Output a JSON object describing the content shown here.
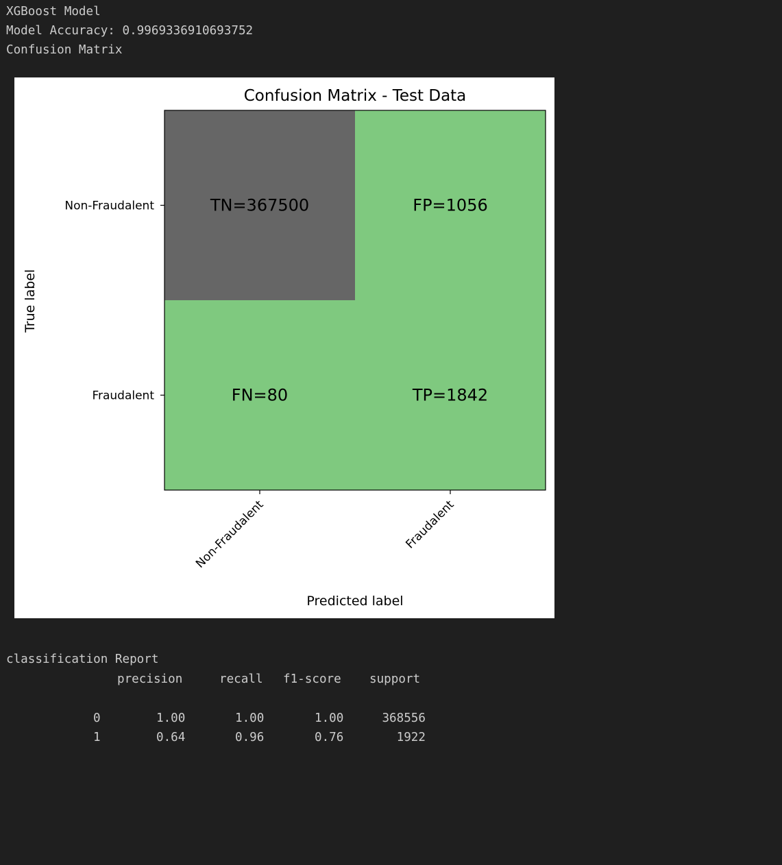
{
  "output": {
    "line1": "XGBoost Model",
    "line2": "Model Accuracy: 0.9969336910693752",
    "line3": "Confusion Matrix"
  },
  "chart_data": {
    "type": "heatmap",
    "title": "Confusion Matrix - Test Data",
    "xlabel": "Predicted label",
    "ylabel": "True label",
    "x_categories": [
      "Non-Fraudalent",
      "Fraudalent"
    ],
    "y_categories": [
      "Non-Fraudalent",
      "Fraudalent"
    ],
    "cells": [
      {
        "row": 0,
        "col": 0,
        "label": "TN=367500",
        "value": 367500,
        "color": "#666666"
      },
      {
        "row": 0,
        "col": 1,
        "label": "FP=1056",
        "value": 1056,
        "color": "#7fc97f"
      },
      {
        "row": 1,
        "col": 0,
        "label": "FN=80",
        "value": 80,
        "color": "#7fc97f"
      },
      {
        "row": 1,
        "col": 1,
        "label": "TP=1842",
        "value": 1842,
        "color": "#7fc97f"
      }
    ]
  },
  "report": {
    "title": "classification Report",
    "headers": [
      "precision",
      "recall",
      "f1-score",
      "support"
    ],
    "rows": [
      {
        "label": "0",
        "precision": "1.00",
        "recall": "1.00",
        "f1": "1.00",
        "support": "368556"
      },
      {
        "label": "1",
        "precision": "0.64",
        "recall": "0.96",
        "f1": "0.76",
        "support": "1922"
      }
    ]
  }
}
